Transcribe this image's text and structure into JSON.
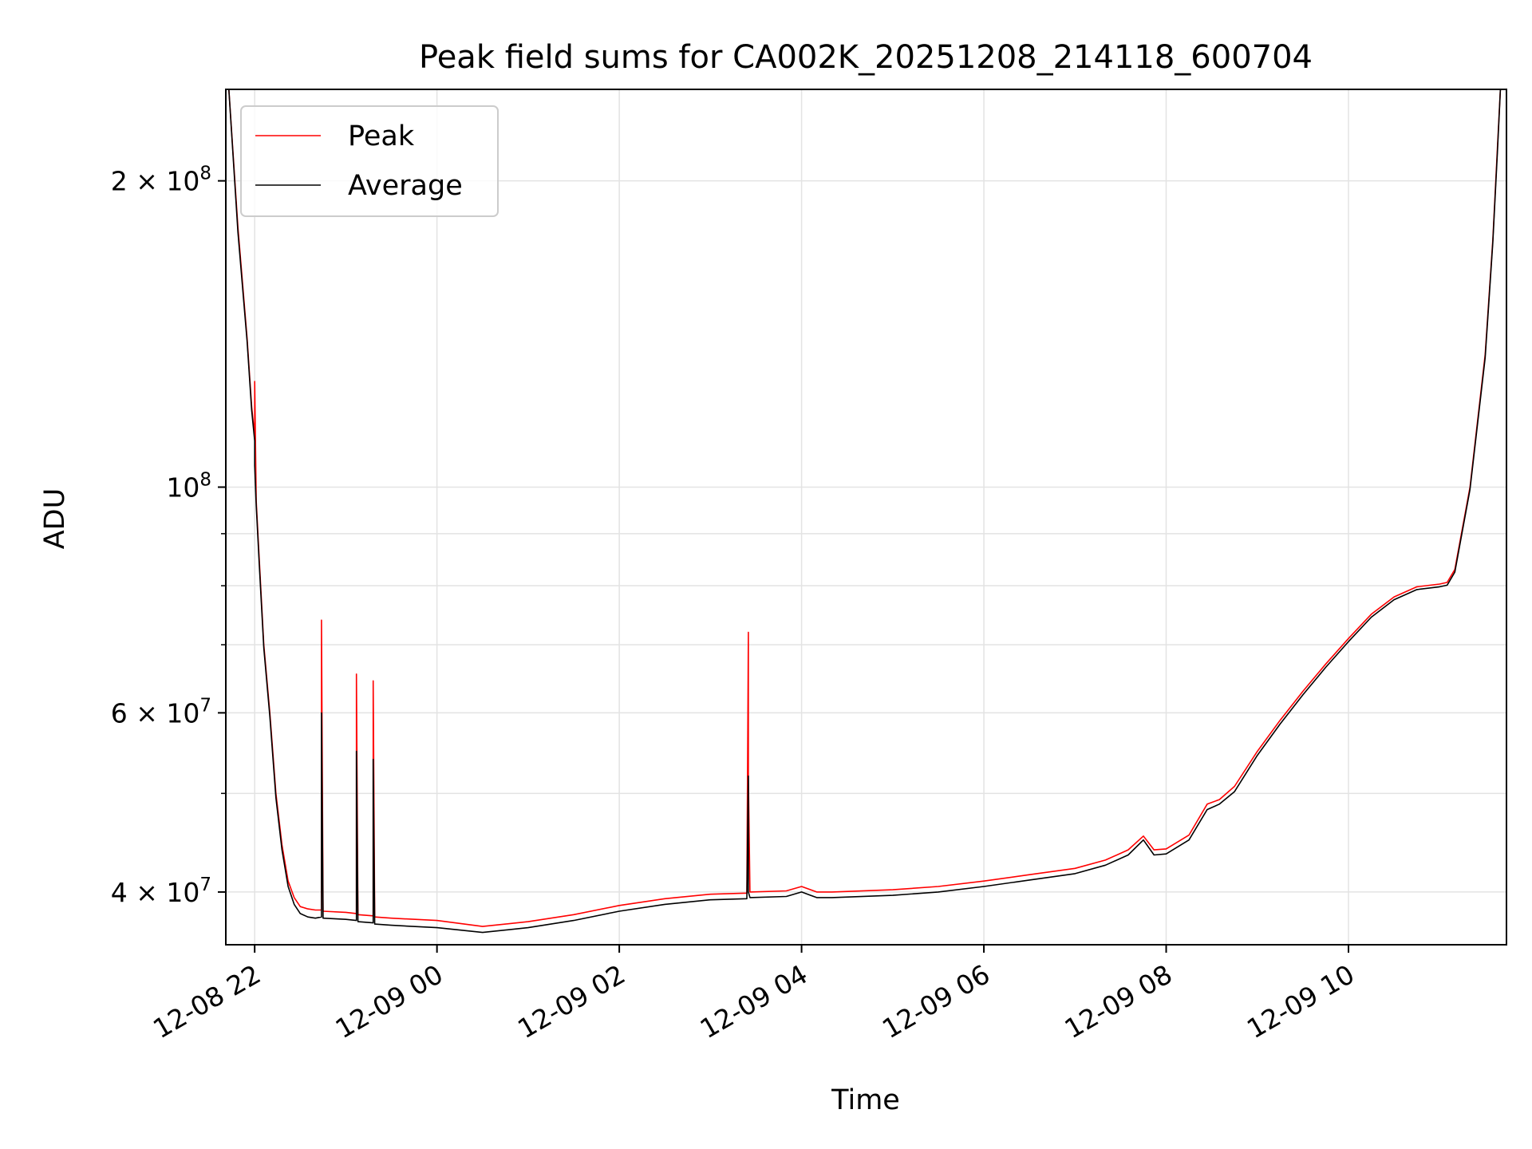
{
  "chart_data": {
    "type": "line",
    "title": "Peak field sums for CA002K_20251208_214118_600704",
    "xlabel": "Time",
    "ylabel": "ADU",
    "yscale": "log",
    "grid": true,
    "legend_position": "upper-left",
    "xlim": [
      "2025-12-08 21:41",
      "2025-12-09 11:44"
    ],
    "ylim": [
      35500000,
      246000000
    ],
    "x_ticks": [
      {
        "value": "2025-12-08 22:00",
        "label": "12-08 22"
      },
      {
        "value": "2025-12-09 00:00",
        "label": "12-09 00"
      },
      {
        "value": "2025-12-09 02:00",
        "label": "12-09 02"
      },
      {
        "value": "2025-12-09 04:00",
        "label": "12-09 04"
      },
      {
        "value": "2025-12-09 06:00",
        "label": "12-09 06"
      },
      {
        "value": "2025-12-09 08:00",
        "label": "12-09 08"
      },
      {
        "value": "2025-12-09 10:00",
        "label": "12-09 10"
      }
    ],
    "y_ticks": [
      {
        "value": 40000000,
        "base": "4 × 10",
        "exp": "7"
      },
      {
        "value": 60000000,
        "base": "6 × 10",
        "exp": "7"
      },
      {
        "value": 100000000,
        "base": "10",
        "exp": "8"
      },
      {
        "value": 200000000,
        "base": "2 × 10",
        "exp": "8"
      }
    ],
    "y_minor_ticks": [
      50000000,
      70000000,
      80000000,
      90000000
    ],
    "series": [
      {
        "name": "Peak",
        "color": "#ff0000",
        "x": [
          "2025-12-08 21:43",
          "2025-12-08 21:49",
          "2025-12-08 21:55",
          "2025-12-08 21:58",
          "2025-12-08 22:00",
          "2025-12-08 22:00",
          "2025-12-08 22:01",
          "2025-12-08 22:03",
          "2025-12-08 22:06",
          "2025-12-08 22:10",
          "2025-12-08 22:14",
          "2025-12-08 22:18",
          "2025-12-08 22:22",
          "2025-12-08 22:26",
          "2025-12-08 22:30",
          "2025-12-08 22:35",
          "2025-12-08 22:40",
          "2025-12-08 22:44",
          "2025-12-08 22:44",
          "2025-12-08 22:45",
          "2025-12-08 23:00",
          "2025-12-08 23:07",
          "2025-12-08 23:07",
          "2025-12-08 23:08",
          "2025-12-08 23:18",
          "2025-12-08 23:18",
          "2025-12-08 23:19",
          "2025-12-08 23:30",
          "2025-12-09 00:00",
          "2025-12-09 00:30",
          "2025-12-09 01:00",
          "2025-12-09 01:30",
          "2025-12-09 02:00",
          "2025-12-09 02:30",
          "2025-12-09 03:00",
          "2025-12-09 03:24",
          "2025-12-09 03:25",
          "2025-12-09 03:25",
          "2025-12-09 03:26",
          "2025-12-09 03:50",
          "2025-12-09 04:00",
          "2025-12-09 04:10",
          "2025-12-09 04:20",
          "2025-12-09 05:00",
          "2025-12-09 05:30",
          "2025-12-09 06:00",
          "2025-12-09 06:30",
          "2025-12-09 07:00",
          "2025-12-09 07:20",
          "2025-12-09 07:35",
          "2025-12-09 07:45",
          "2025-12-09 07:52",
          "2025-12-09 08:00",
          "2025-12-09 08:15",
          "2025-12-09 08:27",
          "2025-12-09 08:35",
          "2025-12-09 08:45",
          "2025-12-09 09:00",
          "2025-12-09 09:15",
          "2025-12-09 09:30",
          "2025-12-09 09:45",
          "2025-12-09 10:00",
          "2025-12-09 10:15",
          "2025-12-09 10:30",
          "2025-12-09 10:45",
          "2025-12-09 11:00",
          "2025-12-09 11:05",
          "2025-12-09 11:10",
          "2025-12-09 11:20",
          "2025-12-09 11:30",
          "2025-12-09 11:35",
          "2025-12-09 11:38",
          "2025-12-09 11:40"
        ],
        "values": [
          246000000,
          180000000,
          140000000,
          120000000,
          112000000,
          127000000,
          97000000,
          85000000,
          70000000,
          60000000,
          50000000,
          44500000,
          41000000,
          39500000,
          38700000,
          38500000,
          38400000,
          38400000,
          74000000,
          38300000,
          38200000,
          38100000,
          65500000,
          38000000,
          37900000,
          64500000,
          37800000,
          37700000,
          37500000,
          37000000,
          37400000,
          38000000,
          38800000,
          39400000,
          39800000,
          39900000,
          72000000,
          52000000,
          40000000,
          40100000,
          40500000,
          40000000,
          40000000,
          40200000,
          40500000,
          41000000,
          41600000,
          42200000,
          43000000,
          44000000,
          45400000,
          44000000,
          44100000,
          45500000,
          48800000,
          49300000,
          50800000,
          55000000,
          59000000,
          63000000,
          67000000,
          71000000,
          75000000,
          78000000,
          79800000,
          80300000,
          80600000,
          83000000,
          100000000,
          135000000,
          175000000,
          215000000,
          246000000
        ]
      },
      {
        "name": "Average",
        "color": "#000000",
        "x": [
          "2025-12-08 21:43",
          "2025-12-08 21:49",
          "2025-12-08 21:55",
          "2025-12-08 21:58",
          "2025-12-08 22:00",
          "2025-12-08 22:00",
          "2025-12-08 22:01",
          "2025-12-08 22:03",
          "2025-12-08 22:06",
          "2025-12-08 22:10",
          "2025-12-08 22:14",
          "2025-12-08 22:18",
          "2025-12-08 22:22",
          "2025-12-08 22:26",
          "2025-12-08 22:30",
          "2025-12-08 22:35",
          "2025-12-08 22:40",
          "2025-12-08 22:44",
          "2025-12-08 22:44",
          "2025-12-08 22:45",
          "2025-12-08 23:00",
          "2025-12-08 23:07",
          "2025-12-08 23:07",
          "2025-12-08 23:08",
          "2025-12-08 23:18",
          "2025-12-08 23:18",
          "2025-12-08 23:19",
          "2025-12-08 23:30",
          "2025-12-09 00:00",
          "2025-12-09 00:30",
          "2025-12-09 01:00",
          "2025-12-09 01:30",
          "2025-12-09 02:00",
          "2025-12-09 02:30",
          "2025-12-09 03:00",
          "2025-12-09 03:24",
          "2025-12-09 03:25",
          "2025-12-09 03:25",
          "2025-12-09 03:26",
          "2025-12-09 03:50",
          "2025-12-09 04:00",
          "2025-12-09 04:10",
          "2025-12-09 04:20",
          "2025-12-09 05:00",
          "2025-12-09 05:30",
          "2025-12-09 06:00",
          "2025-12-09 06:30",
          "2025-12-09 07:00",
          "2025-12-09 07:20",
          "2025-12-09 07:35",
          "2025-12-09 07:45",
          "2025-12-09 07:52",
          "2025-12-09 08:00",
          "2025-12-09 08:15",
          "2025-12-09 08:27",
          "2025-12-09 08:35",
          "2025-12-09 08:45",
          "2025-12-09 09:00",
          "2025-12-09 09:15",
          "2025-12-09 09:30",
          "2025-12-09 09:45",
          "2025-12-09 10:00",
          "2025-12-09 10:15",
          "2025-12-09 10:30",
          "2025-12-09 10:45",
          "2025-12-09 11:00",
          "2025-12-09 11:05",
          "2025-12-09 11:10",
          "2025-12-09 11:20",
          "2025-12-09 11:30",
          "2025-12-09 11:35",
          "2025-12-09 11:38",
          "2025-12-09 11:40"
        ],
        "values": [
          246000000,
          178000000,
          139000000,
          119000000,
          111000000,
          105000000,
          96000000,
          84000000,
          69500000,
          59500000,
          49500000,
          44000000,
          40500000,
          38900000,
          38100000,
          37800000,
          37700000,
          37800000,
          60000000,
          37700000,
          37600000,
          37500000,
          55000000,
          37400000,
          37300000,
          54000000,
          37200000,
          37100000,
          36900000,
          36500000,
          36900000,
          37500000,
          38300000,
          38900000,
          39300000,
          39400000,
          52000000,
          40000000,
          39500000,
          39600000,
          40000000,
          39500000,
          39500000,
          39700000,
          40000000,
          40500000,
          41100000,
          41700000,
          42500000,
          43500000,
          45000000,
          43500000,
          43600000,
          45000000,
          48200000,
          48800000,
          50200000,
          54500000,
          58500000,
          62500000,
          66500000,
          70500000,
          74500000,
          77500000,
          79300000,
          79800000,
          80100000,
          82500000,
          99500000,
          134000000,
          174000000,
          213000000,
          246000000
        ]
      }
    ]
  }
}
